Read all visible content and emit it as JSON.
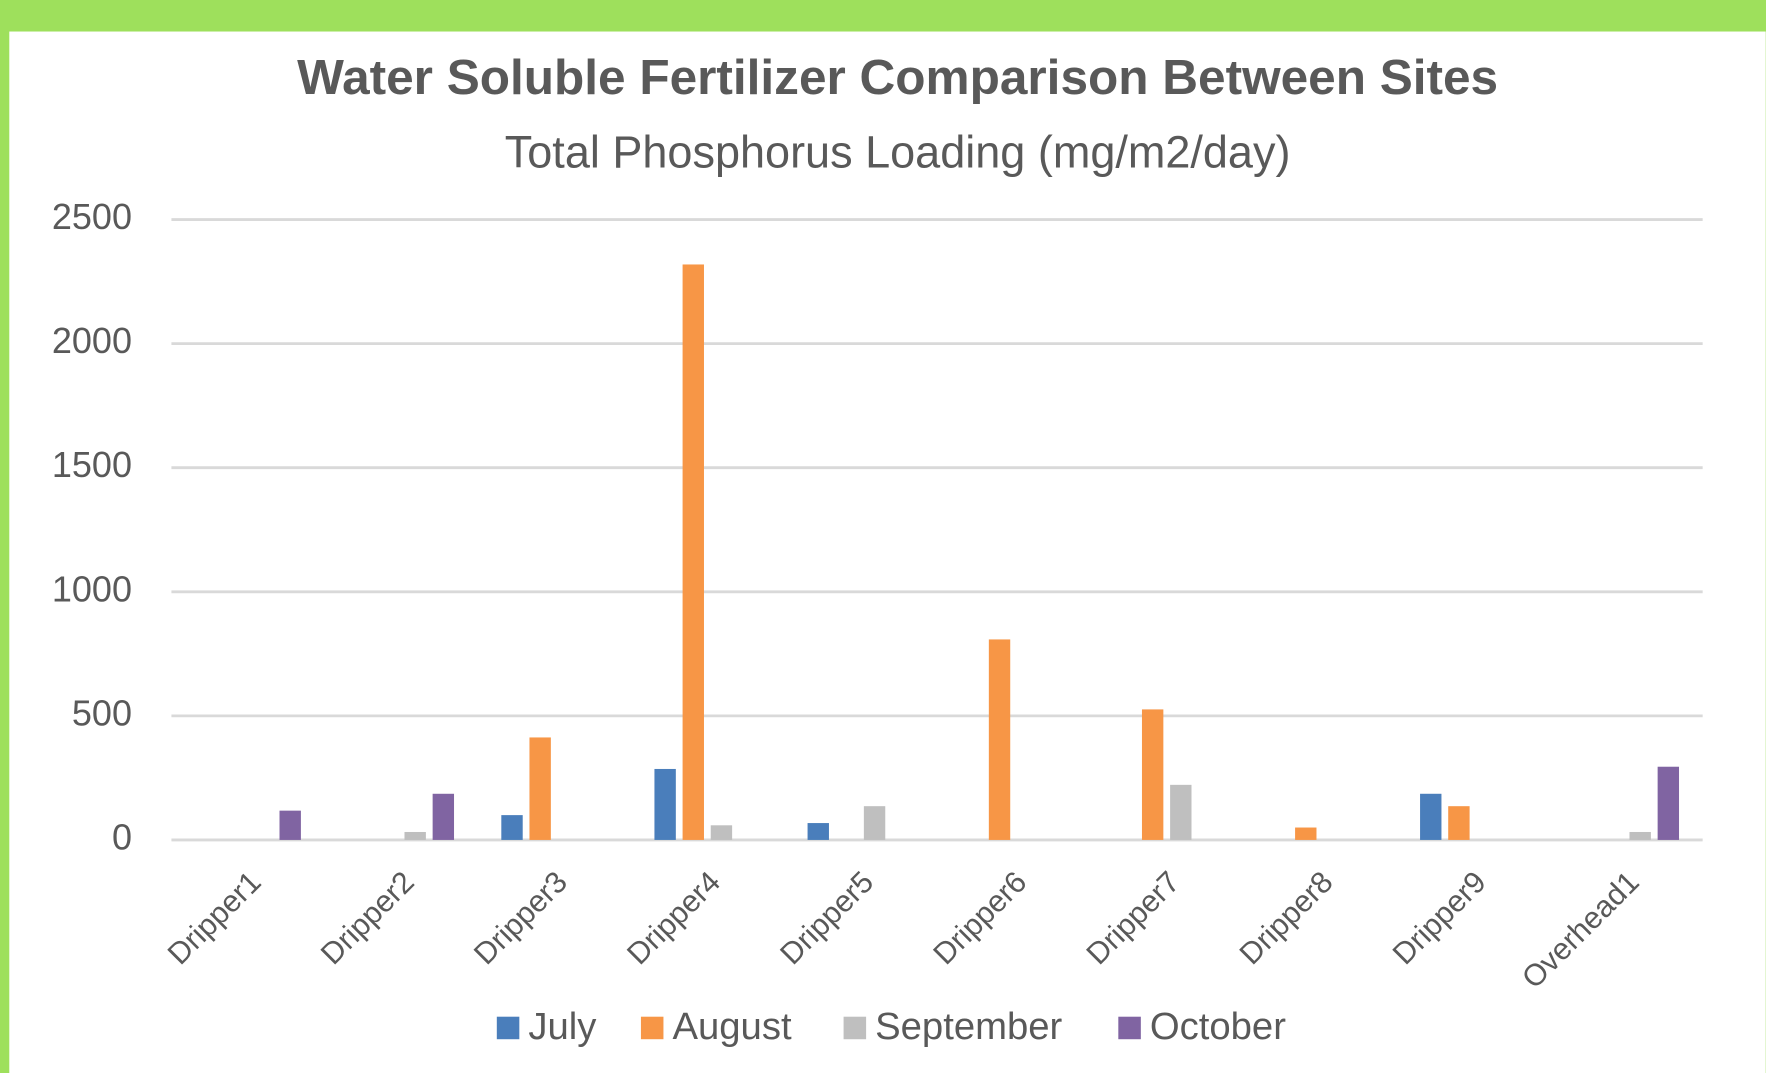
{
  "chart_data": {
    "type": "bar",
    "title": "Water Soluble Fertilizer Comparison Between Sites",
    "subtitle": "Total Phosphorus Loading (mg/m2/day)",
    "categories": [
      "Dripper1",
      "Dripper2",
      "Dripper3",
      "Dripper4",
      "Dripper5",
      "Dripper6",
      "Dripper7",
      "Dripper8",
      "Dripper9",
      "Overhead1"
    ],
    "series": [
      {
        "name": "July",
        "color": "#4a7ebb",
        "values": [
          0,
          0,
          100,
          286,
          68,
          0,
          0,
          0,
          186,
          0
        ]
      },
      {
        "name": "August",
        "color": "#f79646",
        "values": [
          0,
          0,
          413,
          2319,
          0,
          808,
          526,
          50,
          136,
          0
        ]
      },
      {
        "name": "September",
        "color": "#bfbfbf",
        "values": [
          0,
          32,
          0,
          59,
          136,
          0,
          222,
          0,
          0,
          32
        ]
      },
      {
        "name": "October",
        "color": "#8064a2",
        "values": [
          118,
          186,
          0,
          0,
          0,
          0,
          0,
          0,
          0,
          295
        ]
      }
    ],
    "ylim": [
      0,
      2500
    ],
    "yticks": [
      0,
      500,
      1000,
      1500,
      2000,
      2500
    ],
    "grid": true,
    "legend": "bottom"
  }
}
